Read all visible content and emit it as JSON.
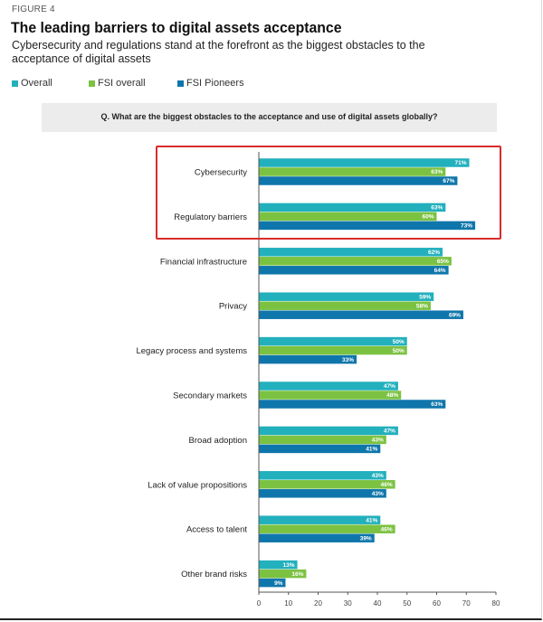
{
  "figure_label": "FIGURE 4",
  "title": "The leading barriers to digital assets acceptance",
  "subtitle": "Cybersecurity and regulations stand at the forefront as the biggest obstacles to the acceptance of digital assets",
  "question": "Q. What are the biggest obstacles to the acceptance and use of digital assets globally?",
  "colors": {
    "overall": "#22b0bd",
    "fsi_overall": "#7cc242",
    "fsi_pioneers": "#0f76ab",
    "highlight": "#d92b2b"
  },
  "chart_data": {
    "type": "bar",
    "orientation": "horizontal",
    "title": "The leading barriers to digital assets acceptance",
    "categories": [
      "Cybersecurity",
      "Regulatory barriers",
      "Financial infrastructure",
      "Privacy",
      "Legacy process and systems",
      "Secondary markets",
      "Broad adoption",
      "Lack of value propositions",
      "Access to talent",
      "Other brand risks"
    ],
    "series": [
      {
        "name": "Overall",
        "values": [
          71,
          63,
          62,
          59,
          50,
          47,
          47,
          43,
          41,
          13
        ]
      },
      {
        "name": "FSI overall",
        "values": [
          63,
          60,
          65,
          58,
          50,
          48,
          43,
          46,
          46,
          16
        ]
      },
      {
        "name": "FSI Pioneers",
        "values": [
          67,
          73,
          64,
          69,
          33,
          63,
          41,
          43,
          39,
          9
        ]
      }
    ],
    "value_suffix": "%",
    "xlim": [
      0,
      80
    ],
    "xticks": [
      0,
      10,
      20,
      30,
      40,
      50,
      60,
      70,
      80
    ],
    "xlabel": "",
    "ylabel": "",
    "grid": false,
    "legend_position": "top-left",
    "highlighted_categories": [
      "Cybersecurity",
      "Regulatory barriers"
    ]
  }
}
